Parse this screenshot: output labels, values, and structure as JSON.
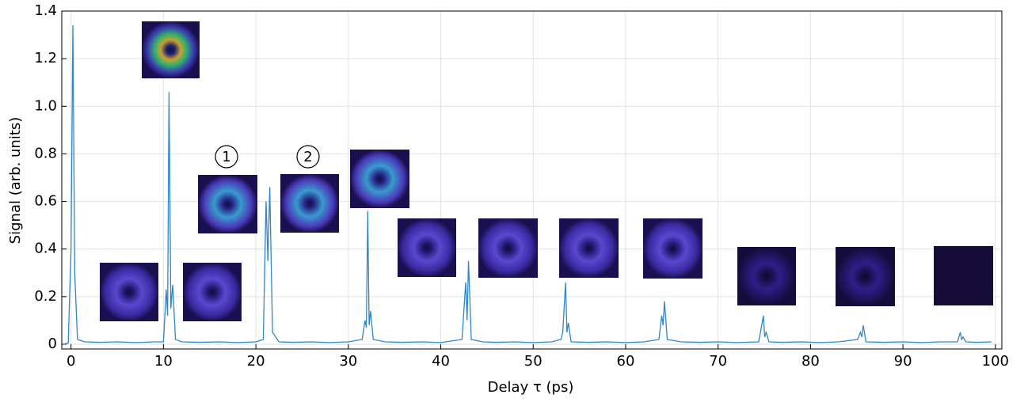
{
  "chart_data": {
    "type": "line",
    "xlabel": "Delay τ (ps)",
    "ylabel": "Signal (arb. units)",
    "annotations": [
      "1",
      "2"
    ],
    "x": [
      -0.8,
      -0.3,
      0,
      0.2,
      0.4,
      0.7,
      1.5,
      3,
      5,
      7,
      9,
      10,
      10.3,
      10.45,
      10.6,
      10.8,
      11.0,
      11.3,
      12,
      14,
      16,
      18,
      20,
      20.8,
      21.1,
      21.3,
      21.5,
      21.8,
      22.5,
      24,
      26,
      28,
      30,
      31.5,
      31.8,
      31.95,
      32.1,
      32.25,
      32.4,
      32.7,
      34,
      36,
      38,
      40,
      42.3,
      42.7,
      42.85,
      43.0,
      43.3,
      44.5,
      46,
      48,
      50,
      52,
      53,
      53.2,
      53.5,
      53.65,
      53.8,
      54.1,
      56,
      58,
      60,
      62,
      63.6,
      63.9,
      64.05,
      64.2,
      64.5,
      66,
      68,
      70,
      72,
      74.4,
      74.9,
      75.05,
      75.2,
      75.5,
      77,
      79,
      81,
      83,
      85.1,
      85.4,
      85.55,
      85.7,
      86,
      88,
      90,
      92,
      94,
      95.9,
      96.2,
      96.35,
      96.5,
      96.8,
      98,
      99.6
    ],
    "series": [
      {
        "color": "#2f86c8",
        "values": [
          0.0,
          0.005,
          0.4,
          1.34,
          0.3,
          0.02,
          0.01,
          0.008,
          0.01,
          0.007,
          0.01,
          0.01,
          0.23,
          0.12,
          1.06,
          0.15,
          0.25,
          0.02,
          0.01,
          0.008,
          0.01,
          0.007,
          0.01,
          0.02,
          0.6,
          0.35,
          0.66,
          0.05,
          0.01,
          0.008,
          0.01,
          0.007,
          0.01,
          0.02,
          0.1,
          0.07,
          0.56,
          0.08,
          0.14,
          0.02,
          0.01,
          0.008,
          0.01,
          0.007,
          0.02,
          0.26,
          0.1,
          0.35,
          0.02,
          0.01,
          0.008,
          0.01,
          0.007,
          0.01,
          0.02,
          0.05,
          0.26,
          0.05,
          0.09,
          0.01,
          0.008,
          0.01,
          0.007,
          0.01,
          0.02,
          0.12,
          0.08,
          0.18,
          0.02,
          0.01,
          0.008,
          0.01,
          0.007,
          0.01,
          0.12,
          0.03,
          0.05,
          0.01,
          0.008,
          0.01,
          0.007,
          0.01,
          0.02,
          0.05,
          0.03,
          0.08,
          0.01,
          0.008,
          0.01,
          0.007,
          0.01,
          0.01,
          0.05,
          0.02,
          0.03,
          0.01,
          0.008,
          0.01
        ]
      }
    ],
    "xlim": [
      -1,
      100.7
    ],
    "ylim": [
      -0.02,
      1.4
    ],
    "xticks": [
      0,
      10,
      20,
      30,
      40,
      50,
      60,
      70,
      80,
      90,
      100
    ],
    "yticks": [
      0,
      0.2,
      0.4,
      0.6,
      0.8,
      {
        "value": 1.0,
        "label": "1.0"
      },
      1.2,
      1.4
    ],
    "grid": true
  }
}
